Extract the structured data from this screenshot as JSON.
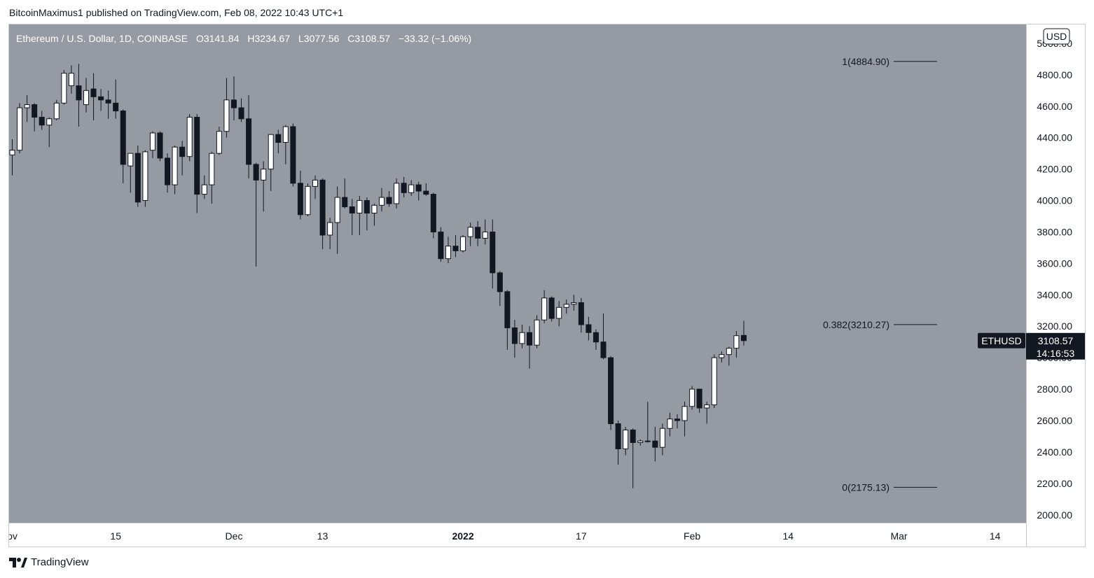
{
  "header": {
    "publish_line": "BitcoinMaximus1 published on TradingView.com, Feb 08, 2022 10:43 UTC+1"
  },
  "legend": {
    "symbol_line": "Ethereum / U.S. Dollar, 1D, COINBASE",
    "o_label": "O",
    "o_value": "3141.84",
    "h_label": "H",
    "h_value": "3234.67",
    "l_label": "L",
    "l_value": "3077.56",
    "c_label": "C",
    "c_value": "3108.57",
    "change": "−33.32 (−1.06%)"
  },
  "currency_badge": "USD",
  "price_tag": {
    "symbol": "ETHUSD",
    "price": "3108.57",
    "countdown": "14:16:53"
  },
  "footer": {
    "brand": "TradingView"
  },
  "colors": {
    "plot_bg": "#969aa3",
    "candle_up": "#ffffff",
    "candle_down": "#131722",
    "fib_line": "#131722",
    "tag_bg": "#131722"
  },
  "chart_data": {
    "type": "candlestick",
    "y_axis": {
      "min": 1950,
      "max": 5120,
      "ticks": [
        "5000.00",
        "4800.00",
        "4600.00",
        "4400.00",
        "4200.00",
        "4000.00",
        "3800.00",
        "3600.00",
        "3400.00",
        "3200.00",
        "3000.00",
        "2800.00",
        "2600.00",
        "2400.00",
        "2200.00",
        "2000.00"
      ],
      "tick_values": [
        5000,
        4800,
        4600,
        4400,
        4200,
        4000,
        3800,
        3600,
        3400,
        3200,
        3000,
        2800,
        2600,
        2400,
        2200,
        2000
      ]
    },
    "x_axis": {
      "labels": [
        {
          "text": "ov",
          "date": "2021-11-01",
          "bold": false
        },
        {
          "text": "15",
          "date": "2021-11-15",
          "bold": false
        },
        {
          "text": "Dec",
          "date": "2021-12-01",
          "bold": false
        },
        {
          "text": "13",
          "date": "2021-12-13",
          "bold": false
        },
        {
          "text": "2022",
          "date": "2022-01-01",
          "bold": true
        },
        {
          "text": "17",
          "date": "2022-01-17",
          "bold": false
        },
        {
          "text": "Feb",
          "date": "2022-02-01",
          "bold": false
        },
        {
          "text": "14",
          "date": "2022-02-14",
          "bold": false
        },
        {
          "text": "Mar",
          "date": "2022-03-01",
          "bold": false
        },
        {
          "text": "14",
          "date": "2022-03-14",
          "bold": false
        }
      ]
    },
    "fib_levels": [
      {
        "label": "1(4884.90)",
        "value": 4884.9
      },
      {
        "label": "0.382(3210.27)",
        "value": 3210.27
      },
      {
        "label": "0(2175.13)",
        "value": 2175.13
      }
    ],
    "last_price": 3108.57,
    "candles": [
      {
        "date": "2021-11-01",
        "o": 4290,
        "h": 4390,
        "l": 4160,
        "c": 4320
      },
      {
        "date": "2021-11-02",
        "o": 4320,
        "h": 4620,
        "l": 4300,
        "c": 4590
      },
      {
        "date": "2021-11-03",
        "o": 4590,
        "h": 4670,
        "l": 4500,
        "c": 4610
      },
      {
        "date": "2021-11-04",
        "o": 4610,
        "h": 4620,
        "l": 4440,
        "c": 4530
      },
      {
        "date": "2021-11-05",
        "o": 4530,
        "h": 4570,
        "l": 4450,
        "c": 4480
      },
      {
        "date": "2021-11-06",
        "o": 4480,
        "h": 4530,
        "l": 4340,
        "c": 4520
      },
      {
        "date": "2021-11-07",
        "o": 4520,
        "h": 4640,
        "l": 4510,
        "c": 4620
      },
      {
        "date": "2021-11-08",
        "o": 4620,
        "h": 4830,
        "l": 4610,
        "c": 4810
      },
      {
        "date": "2021-11-09",
        "o": 4730,
        "h": 4860,
        "l": 4680,
        "c": 4810
      },
      {
        "date": "2021-11-10",
        "o": 4730,
        "h": 4870,
        "l": 4470,
        "c": 4640
      },
      {
        "date": "2021-11-11",
        "o": 4610,
        "h": 4780,
        "l": 4560,
        "c": 4700
      },
      {
        "date": "2021-11-12",
        "o": 4710,
        "h": 4810,
        "l": 4510,
        "c": 4660
      },
      {
        "date": "2021-11-13",
        "o": 4660,
        "h": 4710,
        "l": 4570,
        "c": 4640
      },
      {
        "date": "2021-11-14",
        "o": 4640,
        "h": 4700,
        "l": 4520,
        "c": 4620
      },
      {
        "date": "2021-11-15",
        "o": 4620,
        "h": 4770,
        "l": 4520,
        "c": 4570
      },
      {
        "date": "2021-11-16",
        "o": 4570,
        "h": 4580,
        "l": 4110,
        "c": 4230
      },
      {
        "date": "2021-11-17",
        "o": 4220,
        "h": 4300,
        "l": 4050,
        "c": 4300
      },
      {
        "date": "2021-11-18",
        "o": 4300,
        "h": 4350,
        "l": 3960,
        "c": 3990
      },
      {
        "date": "2021-11-19",
        "o": 4000,
        "h": 4320,
        "l": 3960,
        "c": 4310
      },
      {
        "date": "2021-11-20",
        "o": 4320,
        "h": 4440,
        "l": 4270,
        "c": 4430
      },
      {
        "date": "2021-11-21",
        "o": 4430,
        "h": 4440,
        "l": 4250,
        "c": 4270
      },
      {
        "date": "2021-11-22",
        "o": 4270,
        "h": 4300,
        "l": 4050,
        "c": 4100
      },
      {
        "date": "2021-11-23",
        "o": 4100,
        "h": 4350,
        "l": 4040,
        "c": 4340
      },
      {
        "date": "2021-11-24",
        "o": 4340,
        "h": 4380,
        "l": 4160,
        "c": 4280
      },
      {
        "date": "2021-11-25",
        "o": 4280,
        "h": 4550,
        "l": 4250,
        "c": 4530
      },
      {
        "date": "2021-11-26",
        "o": 4530,
        "h": 4550,
        "l": 3920,
        "c": 4040
      },
      {
        "date": "2021-11-27",
        "o": 4040,
        "h": 4160,
        "l": 4010,
        "c": 4100
      },
      {
        "date": "2021-11-28",
        "o": 4100,
        "h": 4310,
        "l": 3980,
        "c": 4300
      },
      {
        "date": "2021-11-29",
        "o": 4300,
        "h": 4470,
        "l": 4290,
        "c": 4440
      },
      {
        "date": "2021-11-30",
        "o": 4440,
        "h": 4780,
        "l": 4400,
        "c": 4640
      },
      {
        "date": "2021-12-01",
        "o": 4640,
        "h": 4790,
        "l": 4510,
        "c": 4590
      },
      {
        "date": "2021-12-02",
        "o": 4590,
        "h": 4650,
        "l": 4500,
        "c": 4520
      },
      {
        "date": "2021-12-03",
        "o": 4520,
        "h": 4670,
        "l": 4140,
        "c": 4230
      },
      {
        "date": "2021-12-04",
        "o": 4230,
        "h": 4240,
        "l": 3580,
        "c": 4130
      },
      {
        "date": "2021-12-05",
        "o": 4130,
        "h": 4250,
        "l": 3930,
        "c": 4200
      },
      {
        "date": "2021-12-06",
        "o": 4200,
        "h": 4410,
        "l": 4060,
        "c": 4420
      },
      {
        "date": "2021-12-07",
        "o": 4420,
        "h": 4450,
        "l": 4300,
        "c": 4370
      },
      {
        "date": "2021-12-08",
        "o": 4370,
        "h": 4480,
        "l": 4230,
        "c": 4470
      },
      {
        "date": "2021-12-09",
        "o": 4470,
        "h": 4490,
        "l": 4090,
        "c": 4110
      },
      {
        "date": "2021-12-10",
        "o": 4110,
        "h": 4190,
        "l": 3880,
        "c": 3910
      },
      {
        "date": "2021-12-11",
        "o": 3910,
        "h": 4110,
        "l": 3900,
        "c": 4090
      },
      {
        "date": "2021-12-12",
        "o": 4090,
        "h": 4160,
        "l": 4010,
        "c": 4130
      },
      {
        "date": "2021-12-13",
        "o": 4130,
        "h": 4140,
        "l": 3690,
        "c": 3780
      },
      {
        "date": "2021-12-14",
        "o": 3780,
        "h": 3890,
        "l": 3690,
        "c": 3860
      },
      {
        "date": "2021-12-15",
        "o": 3860,
        "h": 4090,
        "l": 3660,
        "c": 4020
      },
      {
        "date": "2021-12-16",
        "o": 4020,
        "h": 4140,
        "l": 3950,
        "c": 3960
      },
      {
        "date": "2021-12-17",
        "o": 3960,
        "h": 4010,
        "l": 3780,
        "c": 3920
      },
      {
        "date": "2021-12-18",
        "o": 3920,
        "h": 4030,
        "l": 3780,
        "c": 4000
      },
      {
        "date": "2021-12-19",
        "o": 4000,
        "h": 4020,
        "l": 3810,
        "c": 3920
      },
      {
        "date": "2021-12-20",
        "o": 3920,
        "h": 3980,
        "l": 3840,
        "c": 3970
      },
      {
        "date": "2021-12-21",
        "o": 3970,
        "h": 4080,
        "l": 3930,
        "c": 4020
      },
      {
        "date": "2021-12-22",
        "o": 4020,
        "h": 4060,
        "l": 3960,
        "c": 3980
      },
      {
        "date": "2021-12-23",
        "o": 3980,
        "h": 4140,
        "l": 3950,
        "c": 4110
      },
      {
        "date": "2021-12-24",
        "o": 4110,
        "h": 4150,
        "l": 4020,
        "c": 4050
      },
      {
        "date": "2021-12-25",
        "o": 4050,
        "h": 4130,
        "l": 4030,
        "c": 4100
      },
      {
        "date": "2021-12-26",
        "o": 4100,
        "h": 4120,
        "l": 4000,
        "c": 4060
      },
      {
        "date": "2021-12-27",
        "o": 4060,
        "h": 4110,
        "l": 4030,
        "c": 4040
      },
      {
        "date": "2021-12-28",
        "o": 4040,
        "h": 4050,
        "l": 3760,
        "c": 3800
      },
      {
        "date": "2021-12-29",
        "o": 3800,
        "h": 3830,
        "l": 3610,
        "c": 3630
      },
      {
        "date": "2021-12-30",
        "o": 3630,
        "h": 3770,
        "l": 3600,
        "c": 3710
      },
      {
        "date": "2021-12-31",
        "o": 3710,
        "h": 3780,
        "l": 3640,
        "c": 3680
      },
      {
        "date": "2022-01-01",
        "o": 3680,
        "h": 3780,
        "l": 3670,
        "c": 3770
      },
      {
        "date": "2022-01-02",
        "o": 3770,
        "h": 3860,
        "l": 3710,
        "c": 3830
      },
      {
        "date": "2022-01-03",
        "o": 3830,
        "h": 3870,
        "l": 3710,
        "c": 3760
      },
      {
        "date": "2022-01-04",
        "o": 3760,
        "h": 3880,
        "l": 3720,
        "c": 3800
      },
      {
        "date": "2022-01-05",
        "o": 3800,
        "h": 3880,
        "l": 3440,
        "c": 3540
      },
      {
        "date": "2022-01-06",
        "o": 3540,
        "h": 3550,
        "l": 3330,
        "c": 3420
      },
      {
        "date": "2022-01-07",
        "o": 3420,
        "h": 3430,
        "l": 3050,
        "c": 3190
      },
      {
        "date": "2022-01-08",
        "o": 3190,
        "h": 3240,
        "l": 3000,
        "c": 3090
      },
      {
        "date": "2022-01-09",
        "o": 3090,
        "h": 3210,
        "l": 3060,
        "c": 3160
      },
      {
        "date": "2022-01-10",
        "o": 3160,
        "h": 3200,
        "l": 2930,
        "c": 3080
      },
      {
        "date": "2022-01-11",
        "o": 3080,
        "h": 3270,
        "l": 3060,
        "c": 3240
      },
      {
        "date": "2022-01-12",
        "o": 3240,
        "h": 3430,
        "l": 3220,
        "c": 3380
      },
      {
        "date": "2022-01-13",
        "o": 3380,
        "h": 3390,
        "l": 3230,
        "c": 3250
      },
      {
        "date": "2022-01-14",
        "o": 3250,
        "h": 3360,
        "l": 3200,
        "c": 3320
      },
      {
        "date": "2022-01-15",
        "o": 3320,
        "h": 3370,
        "l": 3280,
        "c": 3340
      },
      {
        "date": "2022-01-16",
        "o": 3340,
        "h": 3400,
        "l": 3300,
        "c": 3350
      },
      {
        "date": "2022-01-17",
        "o": 3350,
        "h": 3380,
        "l": 3160,
        "c": 3210
      },
      {
        "date": "2022-01-18",
        "o": 3210,
        "h": 3260,
        "l": 3110,
        "c": 3160
      },
      {
        "date": "2022-01-19",
        "o": 3160,
        "h": 3180,
        "l": 3050,
        "c": 3100
      },
      {
        "date": "2022-01-20",
        "o": 3100,
        "h": 3280,
        "l": 2990,
        "c": 3000
      },
      {
        "date": "2022-01-21",
        "o": 3000,
        "h": 3010,
        "l": 2540,
        "c": 2580
      },
      {
        "date": "2022-01-22",
        "o": 2580,
        "h": 2600,
        "l": 2320,
        "c": 2420
      },
      {
        "date": "2022-01-23",
        "o": 2420,
        "h": 2560,
        "l": 2380,
        "c": 2540
      },
      {
        "date": "2022-01-24",
        "o": 2540,
        "h": 2550,
        "l": 2170,
        "c": 2460
      },
      {
        "date": "2022-01-25",
        "o": 2460,
        "h": 2480,
        "l": 2440,
        "c": 2470
      },
      {
        "date": "2022-01-26",
        "o": 2470,
        "h": 2720,
        "l": 2460,
        "c": 2470
      },
      {
        "date": "2022-01-27",
        "o": 2470,
        "h": 2560,
        "l": 2340,
        "c": 2430
      },
      {
        "date": "2022-01-28",
        "o": 2430,
        "h": 2580,
        "l": 2380,
        "c": 2550
      },
      {
        "date": "2022-01-29",
        "o": 2550,
        "h": 2650,
        "l": 2500,
        "c": 2610
      },
      {
        "date": "2022-01-30",
        "o": 2610,
        "h": 2640,
        "l": 2550,
        "c": 2600
      },
      {
        "date": "2022-01-31",
        "o": 2600,
        "h": 2720,
        "l": 2500,
        "c": 2690
      },
      {
        "date": "2022-02-01",
        "o": 2690,
        "h": 2820,
        "l": 2670,
        "c": 2800
      },
      {
        "date": "2022-02-02",
        "o": 2800,
        "h": 2800,
        "l": 2650,
        "c": 2680
      },
      {
        "date": "2022-02-03",
        "o": 2680,
        "h": 2720,
        "l": 2580,
        "c": 2700
      },
      {
        "date": "2022-02-04",
        "o": 2700,
        "h": 3020,
        "l": 2680,
        "c": 3000
      },
      {
        "date": "2022-02-05",
        "o": 3000,
        "h": 3040,
        "l": 2970,
        "c": 3020
      },
      {
        "date": "2022-02-06",
        "o": 3020,
        "h": 3070,
        "l": 2950,
        "c": 3060
      },
      {
        "date": "2022-02-07",
        "o": 3060,
        "h": 3170,
        "l": 3000,
        "c": 3140
      },
      {
        "date": "2022-02-08",
        "o": 3141.84,
        "h": 3234.67,
        "l": 3077.56,
        "c": 3108.57
      }
    ]
  }
}
